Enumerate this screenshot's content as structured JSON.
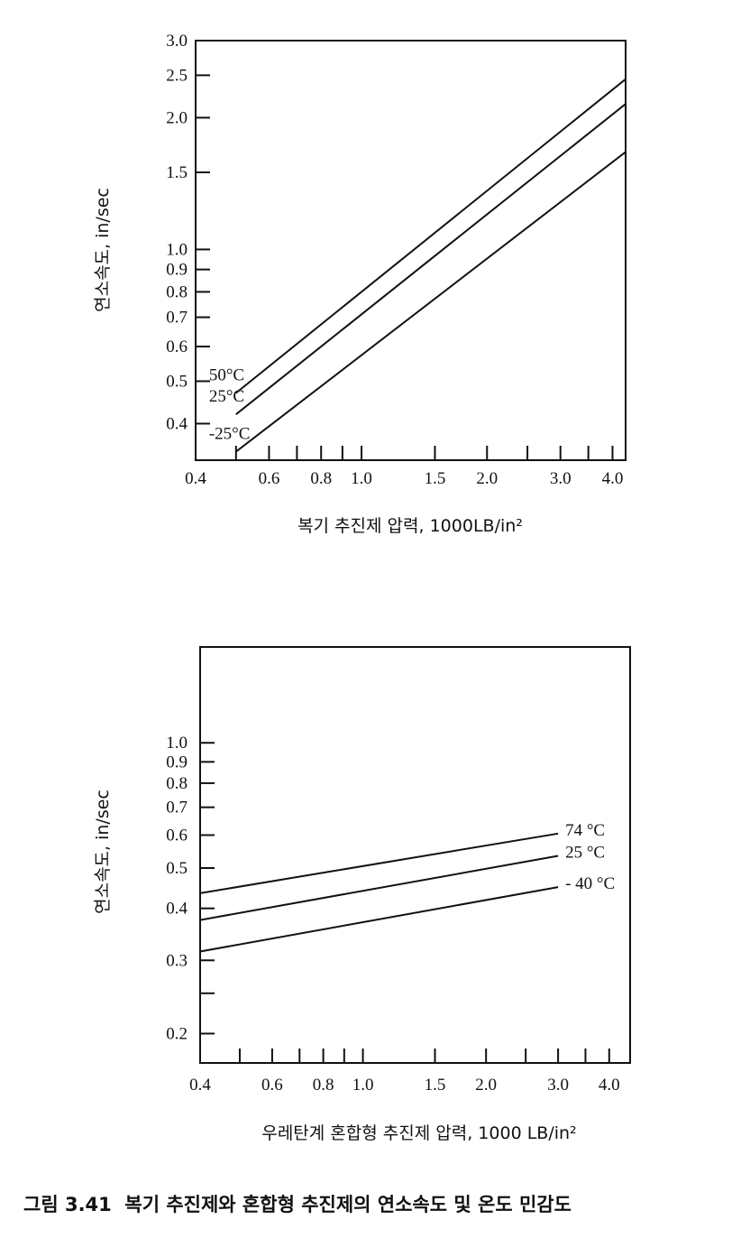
{
  "chart_data": [
    {
      "type": "line",
      "xscale": "log",
      "yscale": "log",
      "xlim": [
        0.4,
        4.3
      ],
      "ylim": [
        0.33,
        3.0
      ],
      "xlabel": "복기 추진제 압력, 1000LB/in²",
      "ylabel": "연소속도, in/sec",
      "x_ticks": [
        {
          "value": 0.4,
          "label": "0.4",
          "tick": false
        },
        {
          "value": 0.5,
          "label": "",
          "tick": true
        },
        {
          "value": 0.6,
          "label": "0.6",
          "tick": true
        },
        {
          "value": 0.7,
          "label": "",
          "tick": true
        },
        {
          "value": 0.8,
          "label": "0.8",
          "tick": true
        },
        {
          "value": 0.9,
          "label": "",
          "tick": true
        },
        {
          "value": 1.0,
          "label": "1.0",
          "tick": true
        },
        {
          "value": 1.5,
          "label": "1.5",
          "tick": true
        },
        {
          "value": 2.0,
          "label": "2.0",
          "tick": true
        },
        {
          "value": 2.5,
          "label": "",
          "tick": true
        },
        {
          "value": 3.0,
          "label": "3.0",
          "tick": true
        },
        {
          "value": 3.5,
          "label": "",
          "tick": true
        },
        {
          "value": 4.0,
          "label": "4.0",
          "tick": true
        }
      ],
      "y_ticks": [
        {
          "value": 3.0,
          "label": "3.0"
        },
        {
          "value": 2.5,
          "label": "2.5"
        },
        {
          "value": 2.0,
          "label": "2.0"
        },
        {
          "value": 1.5,
          "label": "1.5"
        },
        {
          "value": 1.0,
          "label": "1.0"
        },
        {
          "value": 0.9,
          "label": "0.9"
        },
        {
          "value": 0.8,
          "label": "0.8"
        },
        {
          "value": 0.7,
          "label": "0.7"
        },
        {
          "value": 0.6,
          "label": "0.6"
        },
        {
          "value": 0.5,
          "label": "0.5"
        },
        {
          "value": 0.4,
          "label": "0.4"
        }
      ],
      "series": [
        {
          "name": "50°C",
          "x": [
            0.5,
            4.3
          ],
          "y": [
            0.47,
            2.45
          ]
        },
        {
          "name": "25°C",
          "x": [
            0.5,
            4.3
          ],
          "y": [
            0.42,
            2.15
          ]
        },
        {
          "name": "-25°C",
          "x": [
            0.5,
            4.3
          ],
          "y": [
            0.345,
            1.67
          ]
        }
      ],
      "grid": false
    },
    {
      "type": "line",
      "xscale": "log",
      "yscale": "log",
      "xlim": [
        0.4,
        4.5
      ],
      "ylim": [
        0.17,
        1.7
      ],
      "xlabel": "우레탄계 혼합형 추진제 압력, 1000 LB/in²",
      "ylabel": "연소속도, in/sec",
      "x_ticks": [
        {
          "value": 0.4,
          "label": "0.4"
        },
        {
          "value": 0.5,
          "label": "",
          "tick": true
        },
        {
          "value": 0.6,
          "label": "0.6",
          "tick": true
        },
        {
          "value": 0.7,
          "label": "",
          "tick": true
        },
        {
          "value": 0.8,
          "label": "0.8",
          "tick": true
        },
        {
          "value": 0.9,
          "label": "",
          "tick": true
        },
        {
          "value": 1.0,
          "label": "1.0",
          "tick": true
        },
        {
          "value": 1.5,
          "label": "1.5",
          "tick": true
        },
        {
          "value": 2.0,
          "label": "2.0",
          "tick": true
        },
        {
          "value": 2.5,
          "label": "",
          "tick": true
        },
        {
          "value": 3.0,
          "label": "3.0",
          "tick": true
        },
        {
          "value": 3.5,
          "label": "",
          "tick": true
        },
        {
          "value": 4.0,
          "label": "4.0",
          "tick": true
        }
      ],
      "y_ticks": [
        {
          "value": 1.0,
          "label": "1.0"
        },
        {
          "value": 0.9,
          "label": "0.9"
        },
        {
          "value": 0.8,
          "label": "0.8"
        },
        {
          "value": 0.7,
          "label": "0.7"
        },
        {
          "value": 0.6,
          "label": "0.6"
        },
        {
          "value": 0.5,
          "label": "0.5"
        },
        {
          "value": 0.4,
          "label": "0.4"
        },
        {
          "value": 0.3,
          "label": "0.3"
        },
        {
          "value": 0.25,
          "label": ""
        },
        {
          "value": 0.2,
          "label": "0.2"
        }
      ],
      "series": [
        {
          "name": "74 °C",
          "x": [
            0.4,
            3.0
          ],
          "y": [
            0.435,
            0.605
          ]
        },
        {
          "name": "25 °C",
          "x": [
            0.4,
            3.0
          ],
          "y": [
            0.375,
            0.535
          ]
        },
        {
          "name": "- 40 °C",
          "x": [
            0.4,
            3.0
          ],
          "y": [
            0.315,
            0.45
          ]
        }
      ],
      "grid": false
    }
  ],
  "caption": "그림 3.41  복기 추진제와 혼합형 추진제의 연소속도 및 온도 민감도"
}
